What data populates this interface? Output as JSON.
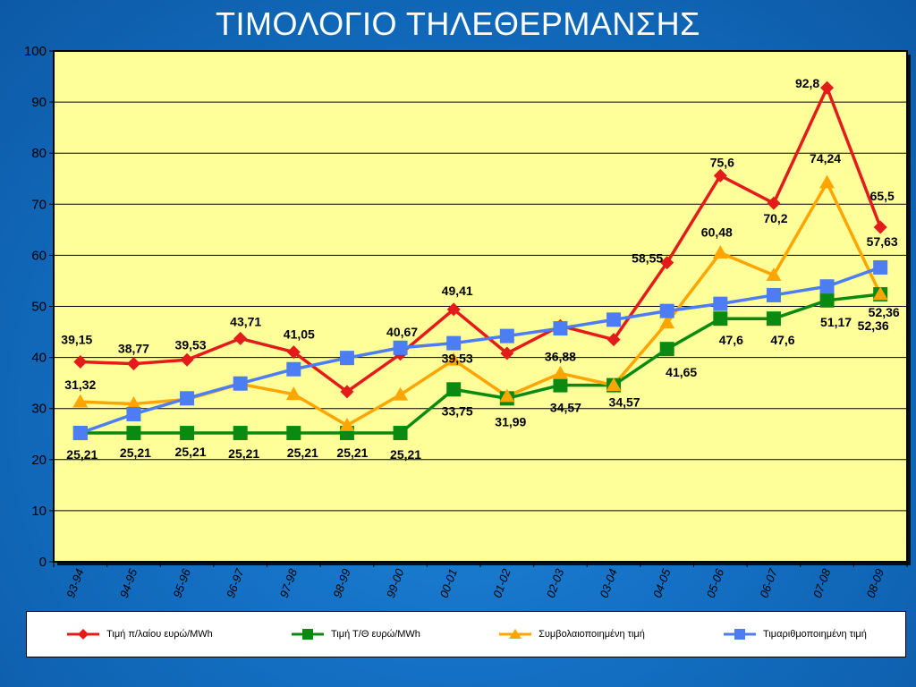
{
  "title": "ΤΙΜΟΛΟΓΙΟ ΤΗΛΕΘΕΡΜΑΝΣΗΣ",
  "colors": {
    "plot_bg": "#ffff99",
    "series": [
      "#e31b1b",
      "#0b8a12",
      "#ffa500",
      "#4d7df2"
    ]
  },
  "chart_data": {
    "type": "line",
    "title": "ΤΙΜΟΛΟΓΙΟ ΤΗΛΕΘΕΡΜΑΝΣΗΣ",
    "categories": [
      "93-94",
      "94-95",
      "95-96",
      "96-97",
      "97-98",
      "98-99",
      "99-00",
      "00-01",
      "01-02",
      "02-03",
      "03-04",
      "04-05",
      "05-06",
      "06-07",
      "07-08",
      "08-09"
    ],
    "ylim": [
      0,
      100
    ],
    "yticks": [
      "0",
      "10",
      "20",
      "30",
      "40",
      "50",
      "60",
      "70",
      "80",
      "90",
      "100"
    ],
    "grid": true,
    "legend_position": "bottom",
    "series": [
      {
        "name": "Τιμή π/λαίου ευρώ/MWh",
        "marker": "diamond",
        "values": [
          39.15,
          38.77,
          39.53,
          43.71,
          41.05,
          33.3,
          40.67,
          49.41,
          40.8,
          46.2,
          43.5,
          58.55,
          75.6,
          70.2,
          92.8,
          65.5
        ],
        "labels": [
          "39,15",
          "38,77",
          "39,53",
          "43,71",
          "41,05",
          "",
          "40,67",
          "49,41",
          "",
          "",
          "",
          "58,55",
          "75,6",
          "70,2",
          "92,8",
          "65,5"
        ]
      },
      {
        "name": "Τιμή Τ/Θ ευρώ/MWh",
        "marker": "square",
        "values": [
          25.21,
          25.21,
          25.21,
          25.21,
          25.21,
          25.21,
          25.21,
          33.75,
          31.99,
          34.57,
          34.57,
          41.65,
          47.6,
          47.6,
          51.17,
          52.36
        ],
        "labels": [
          "25,21",
          "25,21",
          "25,21",
          "25,21",
          "25,21",
          "25,21",
          "25,21",
          "33,75",
          "31,99",
          "34,57",
          "34,57",
          "41,65",
          "47,6",
          "47,6",
          "51,17",
          "52,36"
        ]
      },
      {
        "name": "Συμβολαιοποιημένη τιμή",
        "marker": "triangle",
        "values": [
          31.32,
          30.9,
          31.8,
          34.8,
          32.8,
          26.7,
          32.7,
          39.53,
          32.4,
          36.88,
          34.57,
          46.8,
          60.48,
          56.1,
          74.24,
          52.36
        ],
        "labels": [
          "31,32",
          "",
          "",
          "",
          "",
          "",
          "",
          "39,53",
          "",
          "36,88",
          "",
          "",
          "60,48",
          "",
          "74,24",
          "52,36"
        ]
      },
      {
        "name": "Τιμαριθμοποιημένη τιμή",
        "marker": "square",
        "values": [
          25.21,
          28.9,
          32.0,
          34.9,
          37.7,
          39.9,
          41.9,
          42.8,
          44.2,
          45.7,
          47.4,
          49.1,
          50.5,
          52.2,
          53.9,
          57.63
        ],
        "labels": [
          "",
          "",
          "",
          "",
          "",
          "",
          "",
          "",
          "",
          "",
          "",
          "",
          "",
          "",
          "",
          "57,63"
        ]
      }
    ]
  }
}
